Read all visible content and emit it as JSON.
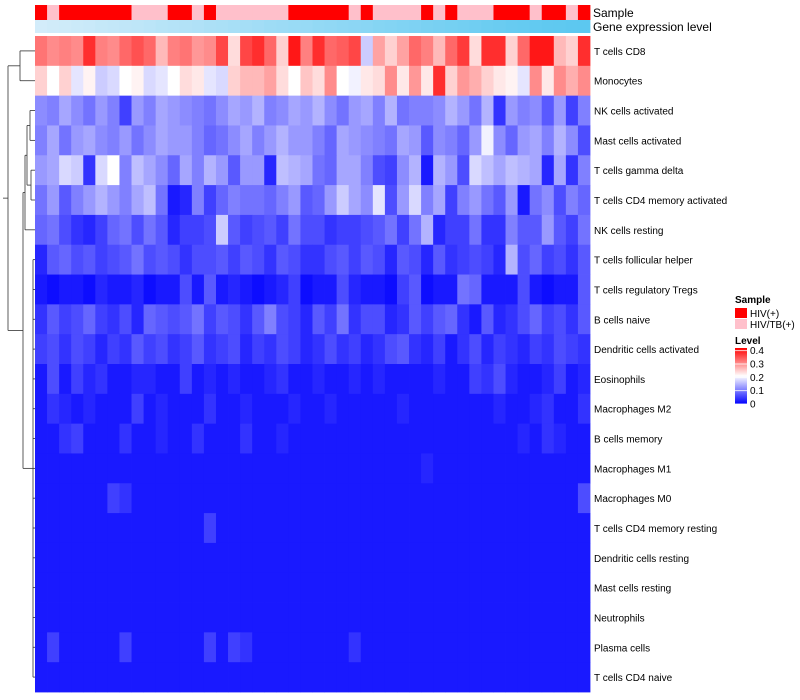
{
  "chart_data": {
    "type": "heatmap",
    "title": "",
    "annotation_tracks": [
      {
        "name": "Sample",
        "label": "Sample"
      },
      {
        "name": "gene_expression_level",
        "label": "Gene expression level"
      }
    ],
    "rows": [
      "T cells CD8",
      "Monocytes",
      "NK cells activated",
      "Mast cells activated",
      "T cells gamma delta",
      "T cells CD4 memory activated",
      "NK cells resting",
      "T cells follicular helper",
      "T cells regulatory  Tregs",
      "B cells naive",
      "Dendritic cells activated",
      "Eosinophils",
      "Macrophages M2",
      "B cells memory",
      "Macrophages M1",
      "Macrophages M0",
      "T cells CD4 memory resting",
      "Dendritic cells resting",
      "Mast cells resting",
      "Neutrophils",
      "Plasma cells",
      "T cells CD4 naive"
    ],
    "n_columns": 46,
    "sample_groups": [
      "HIV(+)",
      "HIV/TB(+)",
      "HIV(+)",
      "HIV(+)",
      "HIV(+)",
      "HIV(+)",
      "HIV(+)",
      "HIV(+)",
      "HIV/TB(+)",
      "HIV/TB(+)",
      "HIV/TB(+)",
      "HIV(+)",
      "HIV(+)",
      "HIV/TB(+)",
      "HIV(+)",
      "HIV/TB(+)",
      "HIV/TB(+)",
      "HIV/TB(+)",
      "HIV/TB(+)",
      "HIV/TB(+)",
      "HIV/TB(+)",
      "HIV(+)",
      "HIV(+)",
      "HIV(+)",
      "HIV(+)",
      "HIV(+)",
      "HIV/TB(+)",
      "HIV(+)",
      "HIV/TB(+)",
      "HIV/TB(+)",
      "HIV/TB(+)",
      "HIV/TB(+)",
      "HIV(+)",
      "HIV/TB(+)",
      "HIV(+)",
      "HIV/TB(+)",
      "HIV/TB(+)",
      "HIV/TB(+)",
      "HIV(+)",
      "HIV(+)",
      "HIV(+)",
      "HIV/TB(+)",
      "HIV(+)",
      "HIV(+)",
      "HIV/TB(+)",
      "HIV(+)"
    ],
    "gene_expression_level": [
      0.05,
      0.07,
      0.09,
      0.11,
      0.13,
      0.16,
      0.18,
      0.2,
      0.22,
      0.24,
      0.27,
      0.29,
      0.31,
      0.33,
      0.36,
      0.38,
      0.4,
      0.42,
      0.44,
      0.47,
      0.49,
      0.51,
      0.53,
      0.56,
      0.58,
      0.6,
      0.62,
      0.64,
      0.67,
      0.69,
      0.71,
      0.73,
      0.76,
      0.78,
      0.8,
      0.82,
      0.84,
      0.87,
      0.89,
      0.91,
      0.93,
      0.95,
      0.97,
      0.98,
      0.99,
      1.0
    ],
    "values": [
      [
        0.32,
        0.3,
        0.31,
        0.3,
        0.38,
        0.31,
        0.3,
        0.33,
        0.35,
        0.33,
        0.26,
        0.31,
        0.32,
        0.29,
        0.3,
        0.36,
        0.23,
        0.36,
        0.38,
        0.33,
        0.24,
        0.4,
        0.31,
        0.38,
        0.33,
        0.34,
        0.36,
        0.16,
        0.28,
        0.24,
        0.28,
        0.33,
        0.31,
        0.26,
        0.33,
        0.37,
        0.23,
        0.38,
        0.38,
        0.24,
        0.33,
        0.4,
        0.4,
        0.26,
        0.24,
        0.38
      ],
      [
        0.24,
        0.2,
        0.24,
        0.18,
        0.21,
        0.16,
        0.17,
        0.2,
        0.21,
        0.17,
        0.18,
        0.2,
        0.23,
        0.22,
        0.18,
        0.17,
        0.24,
        0.26,
        0.26,
        0.28,
        0.23,
        0.2,
        0.25,
        0.23,
        0.3,
        0.2,
        0.19,
        0.22,
        0.23,
        0.3,
        0.22,
        0.29,
        0.22,
        0.38,
        0.24,
        0.29,
        0.27,
        0.24,
        0.22,
        0.21,
        0.18,
        0.3,
        0.22,
        0.3,
        0.27,
        0.3
      ],
      [
        0.11,
        0.1,
        0.13,
        0.11,
        0.09,
        0.12,
        0.1,
        0.05,
        0.12,
        0.1,
        0.13,
        0.12,
        0.11,
        0.1,
        0.09,
        0.11,
        0.13,
        0.12,
        0.14,
        0.1,
        0.11,
        0.13,
        0.12,
        0.14,
        0.11,
        0.09,
        0.12,
        0.13,
        0.1,
        0.14,
        0.09,
        0.1,
        0.1,
        0.11,
        0.14,
        0.12,
        0.09,
        0.14,
        0.04,
        0.12,
        0.1,
        0.11,
        0.07,
        0.12,
        0.05,
        0.1
      ],
      [
        0.1,
        0.13,
        0.09,
        0.12,
        0.13,
        0.11,
        0.1,
        0.12,
        0.09,
        0.11,
        0.13,
        0.12,
        0.12,
        0.1,
        0.08,
        0.09,
        0.11,
        0.13,
        0.1,
        0.12,
        0.14,
        0.12,
        0.12,
        0.1,
        0.08,
        0.13,
        0.12,
        0.11,
        0.1,
        0.09,
        0.13,
        0.12,
        0.07,
        0.11,
        0.1,
        0.08,
        0.12,
        0.19,
        0.11,
        0.08,
        0.12,
        0.13,
        0.1,
        0.14,
        0.11,
        0.06
      ],
      [
        0.12,
        0.13,
        0.17,
        0.16,
        0.04,
        0.17,
        0.2,
        0.1,
        0.15,
        0.13,
        0.11,
        0.08,
        0.13,
        0.1,
        0.14,
        0.12,
        0.07,
        0.12,
        0.12,
        0.03,
        0.15,
        0.14,
        0.13,
        0.09,
        0.08,
        0.13,
        0.13,
        0.1,
        0.06,
        0.05,
        0.11,
        0.14,
        0.02,
        0.14,
        0.12,
        0.06,
        0.17,
        0.15,
        0.13,
        0.15,
        0.14,
        0.13,
        0.03,
        0.13,
        0.04,
        0.1
      ],
      [
        0.09,
        0.12,
        0.07,
        0.1,
        0.12,
        0.14,
        0.12,
        0.1,
        0.13,
        0.15,
        0.09,
        0.02,
        0.03,
        0.1,
        0.05,
        0.08,
        0.1,
        0.09,
        0.09,
        0.08,
        0.1,
        0.12,
        0.07,
        0.08,
        0.12,
        0.16,
        0.13,
        0.11,
        0.18,
        0.06,
        0.12,
        0.17,
        0.1,
        0.13,
        0.05,
        0.1,
        0.12,
        0.09,
        0.07,
        0.12,
        0.02,
        0.09,
        0.11,
        0.06,
        0.1,
        0.08
      ],
      [
        0.08,
        0.09,
        0.06,
        0.04,
        0.03,
        0.05,
        0.08,
        0.09,
        0.06,
        0.09,
        0.07,
        0.03,
        0.05,
        0.05,
        0.06,
        0.16,
        0.07,
        0.05,
        0.06,
        0.07,
        0.05,
        0.09,
        0.06,
        0.06,
        0.04,
        0.05,
        0.05,
        0.06,
        0.07,
        0.09,
        0.05,
        0.09,
        0.14,
        0.03,
        0.05,
        0.05,
        0.09,
        0.04,
        0.04,
        0.1,
        0.07,
        0.07,
        0.12,
        0.07,
        0.05,
        0.09
      ],
      [
        0.03,
        0.07,
        0.08,
        0.06,
        0.07,
        0.05,
        0.06,
        0.07,
        0.09,
        0.06,
        0.07,
        0.06,
        0.04,
        0.06,
        0.06,
        0.07,
        0.05,
        0.07,
        0.06,
        0.04,
        0.07,
        0.06,
        0.04,
        0.04,
        0.06,
        0.07,
        0.05,
        0.07,
        0.06,
        0.03,
        0.07,
        0.06,
        0.03,
        0.07,
        0.04,
        0.05,
        0.06,
        0.05,
        0.03,
        0.14,
        0.06,
        0.08,
        0.05,
        0.06,
        0.04,
        0.07
      ],
      [
        0.02,
        0.01,
        0.02,
        0.02,
        0.01,
        0.03,
        0.02,
        0.02,
        0.03,
        0.01,
        0.02,
        0.02,
        0.06,
        0.02,
        0.07,
        0.02,
        0.03,
        0.02,
        0.01,
        0.02,
        0.03,
        0.05,
        0.01,
        0.02,
        0.02,
        0.06,
        0.03,
        0.02,
        0.02,
        0.01,
        0.05,
        0.07,
        0.01,
        0.02,
        0.02,
        0.09,
        0.08,
        0.02,
        0.02,
        0.02,
        0.06,
        0.02,
        0.01,
        0.02,
        0.02,
        0.07
      ],
      [
        0.04,
        0.07,
        0.05,
        0.06,
        0.08,
        0.05,
        0.04,
        0.06,
        0.03,
        0.08,
        0.07,
        0.06,
        0.07,
        0.09,
        0.05,
        0.07,
        0.06,
        0.04,
        0.07,
        0.1,
        0.06,
        0.05,
        0.03,
        0.07,
        0.05,
        0.09,
        0.04,
        0.06,
        0.06,
        0.03,
        0.04,
        0.07,
        0.05,
        0.07,
        0.08,
        0.04,
        0.02,
        0.07,
        0.03,
        0.04,
        0.06,
        0.08,
        0.05,
        0.06,
        0.04,
        0.07
      ],
      [
        0.05,
        0.06,
        0.04,
        0.06,
        0.05,
        0.03,
        0.05,
        0.04,
        0.07,
        0.05,
        0.06,
        0.04,
        0.05,
        0.07,
        0.04,
        0.05,
        0.06,
        0.03,
        0.05,
        0.04,
        0.06,
        0.05,
        0.03,
        0.04,
        0.06,
        0.04,
        0.05,
        0.03,
        0.04,
        0.06,
        0.07,
        0.04,
        0.03,
        0.05,
        0.02,
        0.04,
        0.06,
        0.03,
        0.05,
        0.04,
        0.03,
        0.05,
        0.04,
        0.06,
        0.05,
        0.04
      ],
      [
        0.02,
        0.06,
        0.02,
        0.05,
        0.03,
        0.04,
        0.02,
        0.02,
        0.03,
        0.03,
        0.02,
        0.02,
        0.05,
        0.02,
        0.03,
        0.02,
        0.03,
        0.02,
        0.02,
        0.03,
        0.04,
        0.02,
        0.02,
        0.03,
        0.02,
        0.02,
        0.03,
        0.02,
        0.03,
        0.02,
        0.02,
        0.02,
        0.02,
        0.03,
        0.02,
        0.02,
        0.05,
        0.04,
        0.06,
        0.03,
        0.02,
        0.02,
        0.03,
        0.05,
        0.02,
        0.03
      ],
      [
        0.02,
        0.04,
        0.03,
        0.02,
        0.03,
        0.02,
        0.02,
        0.02,
        0.05,
        0.02,
        0.03,
        0.02,
        0.02,
        0.02,
        0.04,
        0.02,
        0.02,
        0.03,
        0.02,
        0.02,
        0.02,
        0.03,
        0.02,
        0.02,
        0.03,
        0.02,
        0.02,
        0.02,
        0.02,
        0.02,
        0.03,
        0.02,
        0.02,
        0.02,
        0.02,
        0.02,
        0.02,
        0.02,
        0.03,
        0.02,
        0.02,
        0.03,
        0.04,
        0.02,
        0.02,
        0.04
      ],
      [
        0.02,
        0.02,
        0.04,
        0.05,
        0.02,
        0.02,
        0.02,
        0.04,
        0.02,
        0.02,
        0.03,
        0.02,
        0.02,
        0.04,
        0.02,
        0.02,
        0.02,
        0.04,
        0.02,
        0.02,
        0.03,
        0.02,
        0.02,
        0.02,
        0.02,
        0.02,
        0.02,
        0.02,
        0.02,
        0.02,
        0.02,
        0.02,
        0.02,
        0.02,
        0.02,
        0.02,
        0.02,
        0.02,
        0.02,
        0.02,
        0.03,
        0.02,
        0.04,
        0.03,
        0.02,
        0.02
      ],
      [
        0.02,
        0.02,
        0.02,
        0.02,
        0.02,
        0.02,
        0.02,
        0.02,
        0.02,
        0.02,
        0.02,
        0.02,
        0.02,
        0.02,
        0.02,
        0.02,
        0.02,
        0.02,
        0.02,
        0.02,
        0.02,
        0.02,
        0.02,
        0.02,
        0.02,
        0.02,
        0.02,
        0.02,
        0.02,
        0.02,
        0.02,
        0.02,
        0.03,
        0.02,
        0.02,
        0.02,
        0.02,
        0.02,
        0.02,
        0.02,
        0.02,
        0.02,
        0.02,
        0.02,
        0.02,
        0.02
      ],
      [
        0.02,
        0.02,
        0.02,
        0.02,
        0.02,
        0.02,
        0.05,
        0.04,
        0.02,
        0.02,
        0.02,
        0.02,
        0.02,
        0.02,
        0.02,
        0.02,
        0.02,
        0.02,
        0.02,
        0.02,
        0.02,
        0.02,
        0.02,
        0.02,
        0.02,
        0.02,
        0.02,
        0.02,
        0.02,
        0.02,
        0.02,
        0.02,
        0.02,
        0.02,
        0.02,
        0.02,
        0.02,
        0.02,
        0.02,
        0.02,
        0.02,
        0.02,
        0.02,
        0.02,
        0.02,
        0.06
      ],
      [
        0.02,
        0.02,
        0.02,
        0.02,
        0.02,
        0.02,
        0.02,
        0.02,
        0.02,
        0.02,
        0.02,
        0.02,
        0.02,
        0.02,
        0.05,
        0.02,
        0.02,
        0.02,
        0.02,
        0.02,
        0.02,
        0.02,
        0.02,
        0.02,
        0.02,
        0.02,
        0.02,
        0.02,
        0.02,
        0.02,
        0.02,
        0.02,
        0.02,
        0.02,
        0.02,
        0.02,
        0.02,
        0.02,
        0.02,
        0.02,
        0.02,
        0.02,
        0.02,
        0.02,
        0.02,
        0.02
      ],
      [
        0.02,
        0.02,
        0.02,
        0.02,
        0.02,
        0.02,
        0.02,
        0.02,
        0.02,
        0.02,
        0.02,
        0.02,
        0.02,
        0.02,
        0.02,
        0.02,
        0.02,
        0.02,
        0.02,
        0.02,
        0.02,
        0.02,
        0.02,
        0.02,
        0.02,
        0.02,
        0.02,
        0.02,
        0.02,
        0.02,
        0.02,
        0.02,
        0.02,
        0.02,
        0.02,
        0.02,
        0.02,
        0.02,
        0.02,
        0.02,
        0.02,
        0.02,
        0.02,
        0.02,
        0.02,
        0.02
      ],
      [
        0.02,
        0.02,
        0.02,
        0.02,
        0.02,
        0.02,
        0.02,
        0.02,
        0.02,
        0.02,
        0.02,
        0.02,
        0.02,
        0.02,
        0.02,
        0.02,
        0.02,
        0.02,
        0.02,
        0.02,
        0.02,
        0.02,
        0.02,
        0.02,
        0.02,
        0.02,
        0.02,
        0.02,
        0.02,
        0.02,
        0.02,
        0.02,
        0.02,
        0.02,
        0.02,
        0.02,
        0.02,
        0.02,
        0.02,
        0.02,
        0.02,
        0.02,
        0.02,
        0.02,
        0.02,
        0.02
      ],
      [
        0.02,
        0.02,
        0.02,
        0.02,
        0.02,
        0.02,
        0.02,
        0.02,
        0.02,
        0.02,
        0.02,
        0.02,
        0.02,
        0.02,
        0.02,
        0.02,
        0.02,
        0.02,
        0.02,
        0.02,
        0.02,
        0.02,
        0.02,
        0.02,
        0.02,
        0.02,
        0.02,
        0.02,
        0.02,
        0.02,
        0.02,
        0.02,
        0.02,
        0.02,
        0.02,
        0.02,
        0.02,
        0.02,
        0.02,
        0.02,
        0.02,
        0.02,
        0.02,
        0.02,
        0.02,
        0.02
      ],
      [
        0.02,
        0.05,
        0.02,
        0.02,
        0.02,
        0.02,
        0.02,
        0.05,
        0.02,
        0.02,
        0.02,
        0.02,
        0.02,
        0.02,
        0.05,
        0.02,
        0.05,
        0.04,
        0.02,
        0.02,
        0.02,
        0.02,
        0.02,
        0.02,
        0.02,
        0.02,
        0.04,
        0.02,
        0.02,
        0.02,
        0.02,
        0.02,
        0.02,
        0.02,
        0.02,
        0.02,
        0.02,
        0.02,
        0.02,
        0.02,
        0.02,
        0.02,
        0.02,
        0.02,
        0.02,
        0.02
      ],
      [
        0.02,
        0.02,
        0.02,
        0.02,
        0.02,
        0.02,
        0.02,
        0.02,
        0.02,
        0.02,
        0.02,
        0.02,
        0.02,
        0.02,
        0.02,
        0.02,
        0.02,
        0.02,
        0.02,
        0.02,
        0.02,
        0.02,
        0.02,
        0.02,
        0.02,
        0.02,
        0.02,
        0.02,
        0.02,
        0.02,
        0.02,
        0.02,
        0.02,
        0.02,
        0.02,
        0.02,
        0.02,
        0.02,
        0.02,
        0.02,
        0.02,
        0.02,
        0.02,
        0.02,
        0.02,
        0.02
      ]
    ],
    "colorscale": {
      "min": 0,
      "max": 0.42,
      "low": "#0000ff",
      "mid": "#ffffff",
      "high": "#ff0000",
      "mid_value": 0.2
    },
    "legend": {
      "sample_title": "Sample",
      "sample_entries": [
        {
          "label": "HIV(+)",
          "color": "#ff0000"
        },
        {
          "label": "HIV/TB(+)",
          "color": "#ffc0cb"
        }
      ],
      "level_title": "Level",
      "level_ticks": [
        {
          "value": 0.4,
          "label": "0.4"
        },
        {
          "value": 0.3,
          "label": "0.3"
        },
        {
          "value": 0.2,
          "label": "0.2"
        },
        {
          "value": 0.1,
          "label": "0.1"
        },
        {
          "value": 0,
          "label": "0"
        }
      ]
    },
    "expression_track_colors": {
      "low": "#d9eefa",
      "high": "#5cc8f0"
    },
    "row_dendrogram": "left"
  }
}
